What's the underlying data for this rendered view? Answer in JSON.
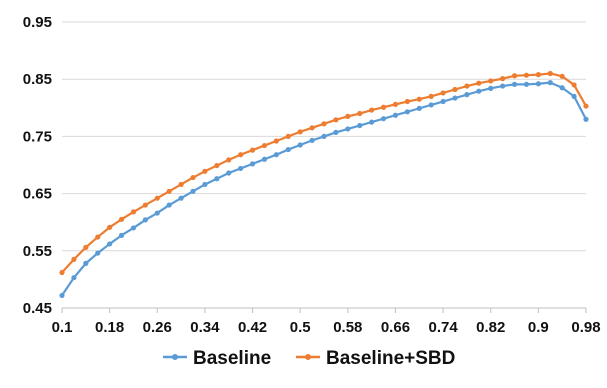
{
  "chart_data": {
    "type": "line",
    "title": "",
    "xlabel": "",
    "ylabel": "",
    "ylim": [
      0.45,
      0.95
    ],
    "y_ticks": [
      "0.45",
      "0.55",
      "0.65",
      "0.75",
      "0.85",
      "0.95"
    ],
    "x_ticks": [
      "0.1",
      "0.18",
      "0.26",
      "0.34",
      "0.42",
      "0.5",
      "0.58",
      "0.66",
      "0.74",
      "0.82",
      "0.9",
      "0.98"
    ],
    "x": [
      0.1,
      0.12,
      0.14,
      0.16,
      0.18,
      0.2,
      0.22,
      0.24,
      0.26,
      0.28,
      0.3,
      0.32,
      0.34,
      0.36,
      0.38,
      0.4,
      0.42,
      0.44,
      0.46,
      0.48,
      0.5,
      0.52,
      0.54,
      0.56,
      0.58,
      0.6,
      0.62,
      0.64,
      0.66,
      0.68,
      0.7,
      0.72,
      0.74,
      0.76,
      0.78,
      0.8,
      0.82,
      0.84,
      0.86,
      0.88,
      0.9,
      0.92,
      0.94,
      0.96,
      0.98
    ],
    "grid": "horizontal",
    "legend_position": "bottom",
    "series": [
      {
        "name": "Baseline",
        "color": "#5B9BD5",
        "values": [
          0.472,
          0.503,
          0.528,
          0.546,
          0.562,
          0.577,
          0.59,
          0.604,
          0.616,
          0.63,
          0.642,
          0.654,
          0.666,
          0.676,
          0.686,
          0.694,
          0.702,
          0.71,
          0.718,
          0.727,
          0.735,
          0.743,
          0.75,
          0.757,
          0.763,
          0.769,
          0.775,
          0.781,
          0.787,
          0.793,
          0.799,
          0.805,
          0.811,
          0.817,
          0.823,
          0.829,
          0.834,
          0.838,
          0.841,
          0.841,
          0.842,
          0.844,
          0.835,
          0.82,
          0.78
        ]
      },
      {
        "name": "Baseline+SBD",
        "color": "#ED7D31",
        "values": [
          0.512,
          0.535,
          0.556,
          0.574,
          0.591,
          0.605,
          0.618,
          0.63,
          0.642,
          0.654,
          0.666,
          0.678,
          0.689,
          0.699,
          0.709,
          0.718,
          0.726,
          0.734,
          0.742,
          0.75,
          0.758,
          0.765,
          0.772,
          0.779,
          0.785,
          0.79,
          0.796,
          0.801,
          0.806,
          0.811,
          0.815,
          0.82,
          0.826,
          0.832,
          0.838,
          0.843,
          0.847,
          0.851,
          0.856,
          0.857,
          0.858,
          0.86,
          0.855,
          0.84,
          0.803
        ]
      }
    ]
  }
}
